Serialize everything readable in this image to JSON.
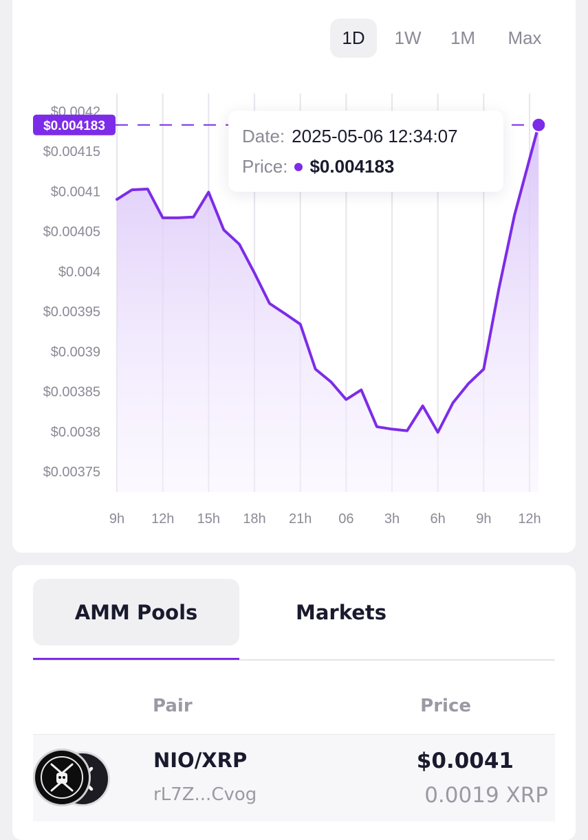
{
  "colors": {
    "accent": "#7c2ce8",
    "fill_top": "#d9c3f8",
    "background": "#f0f0f3",
    "card": "#ffffff"
  },
  "ranges": [
    "1D",
    "1W",
    "1M",
    "Max"
  ],
  "selected_range": "1D",
  "current_price_tag": "$0.004183",
  "tooltip": {
    "date_label": "Date:",
    "date_value": "2025-05-06 12:34:07",
    "price_label": "Price:",
    "price_value": "$0.004183"
  },
  "chart_data": {
    "type": "area",
    "x_ticks": [
      "9h",
      "12h",
      "15h",
      "18h",
      "21h",
      "06",
      "3h",
      "6h",
      "9h",
      "12h"
    ],
    "y_ticks": [
      "$0.00375",
      "$0.0038",
      "$0.00385",
      "$0.0039",
      "$0.00395",
      "$0.004",
      "$0.00405",
      "$0.0041",
      "$0.00415",
      "$0.0042"
    ],
    "ylim": [
      0.00372,
      0.004215
    ],
    "xlim": [
      0,
      9
    ],
    "grid": true,
    "series": [
      {
        "x": [
          0,
          0.33,
          0.67,
          1.0,
          1.33,
          1.67,
          2.0,
          2.33,
          2.67,
          3.0,
          3.33,
          3.67,
          4.0,
          4.33,
          4.67,
          5.0,
          5.33,
          5.67,
          6.0,
          6.33,
          6.67,
          7.0,
          7.33,
          7.67,
          8.0,
          8.33,
          8.67,
          9.2
        ],
        "y": [
          0.00409,
          0.004102,
          0.004103,
          0.004067,
          0.004067,
          0.004068,
          0.004099,
          0.004052,
          0.004034,
          0.003998,
          0.00396,
          0.003947,
          0.003934,
          0.003878,
          0.003862,
          0.00384,
          0.003852,
          0.003806,
          0.003803,
          0.003801,
          0.003832,
          0.003799,
          0.003836,
          0.00386,
          0.003878,
          0.003978,
          0.00407,
          0.004183
        ]
      }
    ]
  },
  "tabs": {
    "amm_pools": "AMM Pools",
    "markets": "Markets"
  },
  "table": {
    "col_pair": "Pair",
    "col_price": "Price",
    "rows": [
      {
        "pair": "NIO/XRP",
        "address": "rL7Z...Cvog",
        "price_usd": "$0.0041",
        "price_xrp": "0.0019 XRP"
      }
    ]
  }
}
